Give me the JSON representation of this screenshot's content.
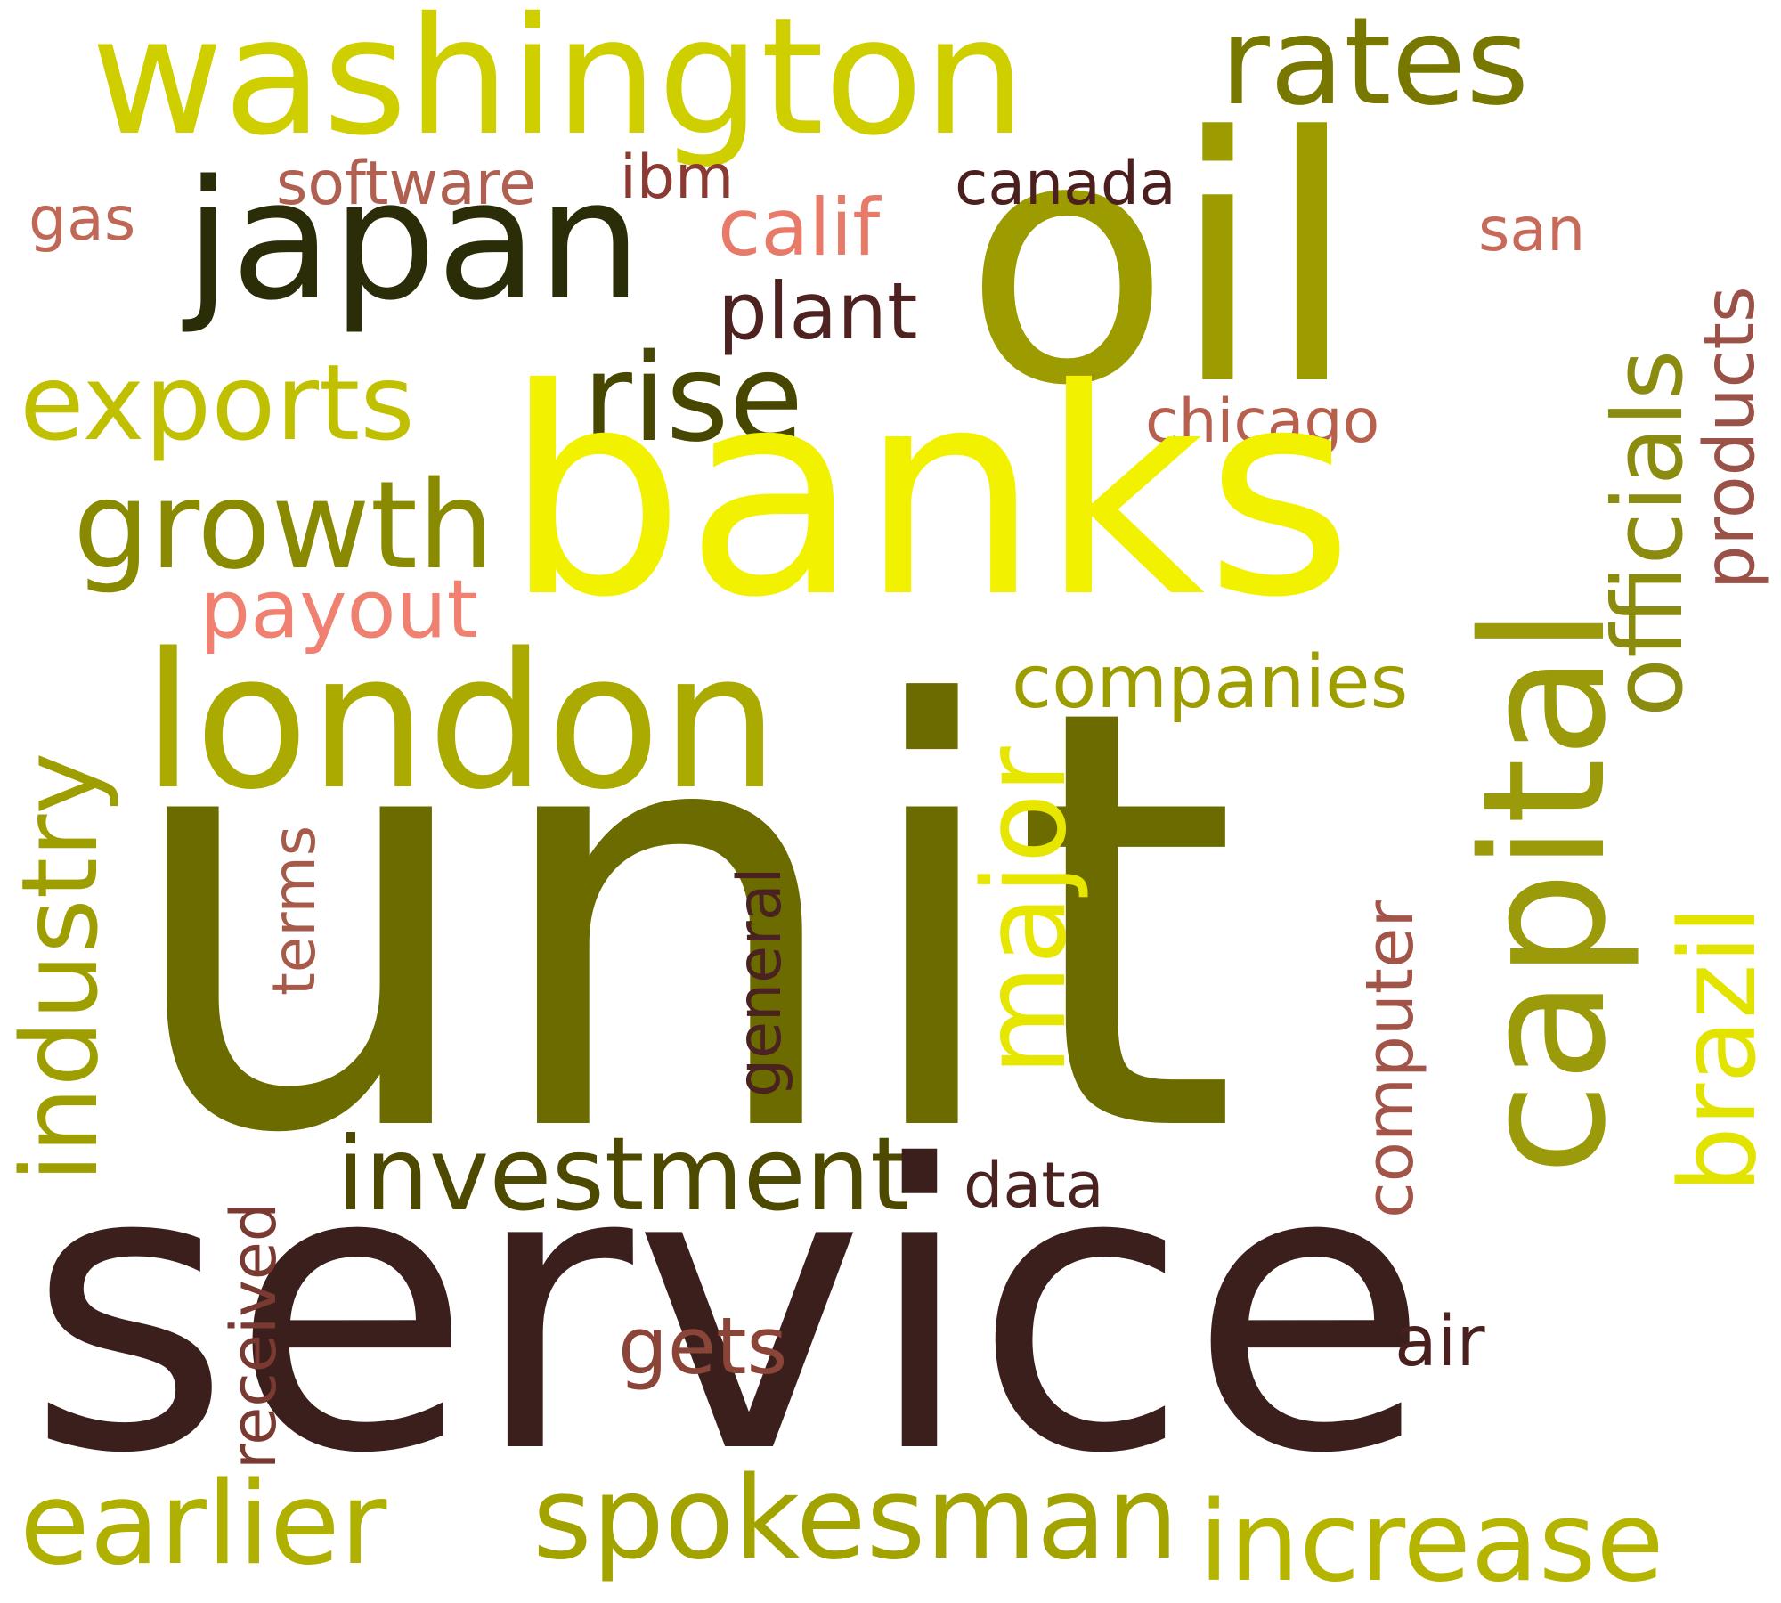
{
  "words": {
    "unit": {
      "text": "unit",
      "color": "#6b6b00"
    },
    "service": {
      "text": "service",
      "color": "#3a1f1c"
    },
    "banks": {
      "text": "banks",
      "color": "#f2f200"
    },
    "oil": {
      "text": "oil",
      "color": "#9c9c00"
    },
    "washington": {
      "text": "washington",
      "color": "#cfcf00"
    },
    "capital": {
      "text": "capital",
      "color": "#9a9a0a"
    },
    "london": {
      "text": "london",
      "color": "#aaaa00"
    },
    "japan": {
      "text": "japan",
      "color": "#2a2d07"
    },
    "spokesman": {
      "text": "spokesman",
      "color": "#a3a300"
    },
    "earlier": {
      "text": "earlier",
      "color": "#b0b000"
    },
    "increase": {
      "text": "increase",
      "color": "#b5b500"
    },
    "industry": {
      "text": "industry",
      "color": "#9e9e00"
    },
    "growth": {
      "text": "growth",
      "color": "#8a8a00"
    },
    "rates": {
      "text": "rates",
      "color": "#787800"
    },
    "officials": {
      "text": "officials",
      "color": "#8b8b10"
    },
    "major": {
      "text": "major",
      "color": "#e6e600"
    },
    "brazil": {
      "text": "brazil",
      "color": "#e3e300"
    },
    "rise": {
      "text": "rise",
      "color": "#474700"
    },
    "exports": {
      "text": "exports",
      "color": "#c0c000"
    },
    "investment": {
      "text": "investment",
      "color": "#4d4a00"
    },
    "companies": {
      "text": "companies",
      "color": "#9d9d00"
    },
    "products": {
      "text": "products",
      "color": "#9a5248"
    },
    "computer": {
      "text": "computer",
      "color": "#a25448"
    },
    "general": {
      "text": "general",
      "color": "#4a2220"
    },
    "terms": {
      "text": "terms",
      "color": "#a65a4a"
    },
    "received": {
      "text": "received",
      "color": "#7a3a32"
    },
    "payout": {
      "text": "payout",
      "color": "#f08070"
    },
    "calif": {
      "text": "calif",
      "color": "#e87a6a"
    },
    "chicago": {
      "text": "chicago",
      "color": "#b8604e"
    },
    "software": {
      "text": "software",
      "color": "#b06050"
    },
    "gas": {
      "text": "gas",
      "color": "#c06858"
    },
    "san": {
      "text": "san",
      "color": "#c86a5a"
    },
    "ibm": {
      "text": "ibm",
      "color": "#8a3a32"
    },
    "canada": {
      "text": "canada",
      "color": "#4a1f1e"
    },
    "plant": {
      "text": "plant",
      "color": "#4d2220"
    },
    "gets": {
      "text": "gets",
      "color": "#8a4438"
    },
    "air": {
      "text": "air",
      "color": "#4a201e"
    },
    "data": {
      "text": "data",
      "color": "#4a2220"
    }
  }
}
